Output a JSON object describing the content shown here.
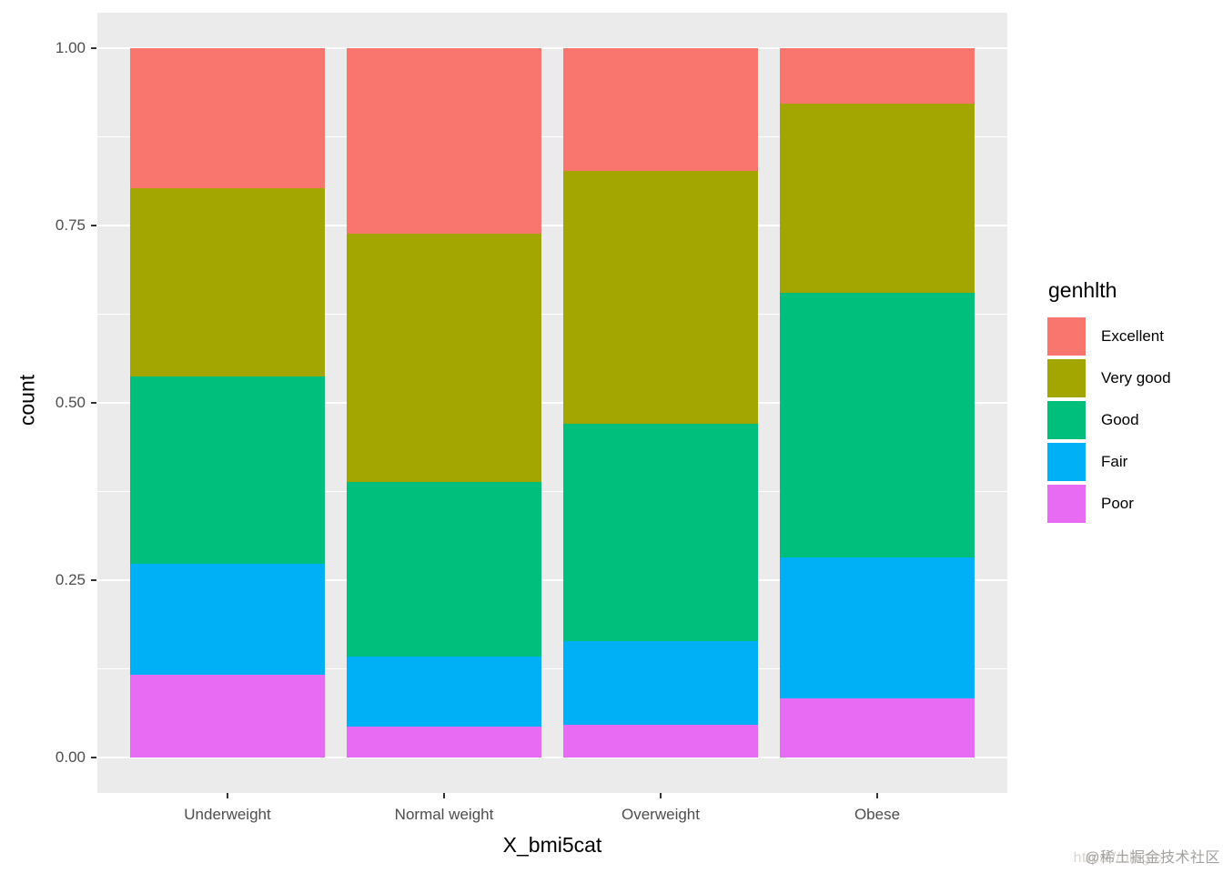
{
  "watermark": {
    "url_text": "https://blog.c",
    "handle_text": "@稀土掘金技术社区"
  },
  "chart_data": {
    "type": "bar",
    "subtype": "stacked-fill",
    "title": "",
    "xlabel": "X_bmi5cat",
    "ylabel": "count",
    "categories": [
      "Underweight",
      "Normal weight",
      "Overweight",
      "Obese"
    ],
    "series": [
      {
        "name": "Excellent",
        "color": "#F8766D",
        "values": [
          0.198,
          0.261,
          0.173,
          0.078
        ]
      },
      {
        "name": "Very good",
        "color": "#A3A500",
        "values": [
          0.265,
          0.35,
          0.356,
          0.267
        ]
      },
      {
        "name": "Good",
        "color": "#00BF7D",
        "values": [
          0.264,
          0.247,
          0.307,
          0.373
        ]
      },
      {
        "name": "Fair",
        "color": "#00B0F6",
        "values": [
          0.156,
          0.098,
          0.118,
          0.199
        ]
      },
      {
        "name": "Poor",
        "color": "#E76BF3",
        "values": [
          0.117,
          0.044,
          0.046,
          0.083
        ]
      }
    ],
    "stack_order_bottom_to_top": [
      "Poor",
      "Fair",
      "Good",
      "Very good",
      "Excellent"
    ],
    "ylim": [
      0,
      1
    ],
    "y_axis": {
      "major_ticks": [
        {
          "label": "0.00",
          "value": 0
        },
        {
          "label": "0.25",
          "value": 0.25
        },
        {
          "label": "0.50",
          "value": 0.5
        },
        {
          "label": "0.75",
          "value": 0.75
        },
        {
          "label": "1.00",
          "value": 1
        }
      ],
      "minor_ticks": [
        0.125,
        0.375,
        0.625,
        0.875
      ]
    },
    "legend": {
      "title": "genhlth",
      "position": "right"
    },
    "grid": true,
    "panel_bg": "#EBEBEB",
    "grid_color": "#FFFFFF"
  }
}
